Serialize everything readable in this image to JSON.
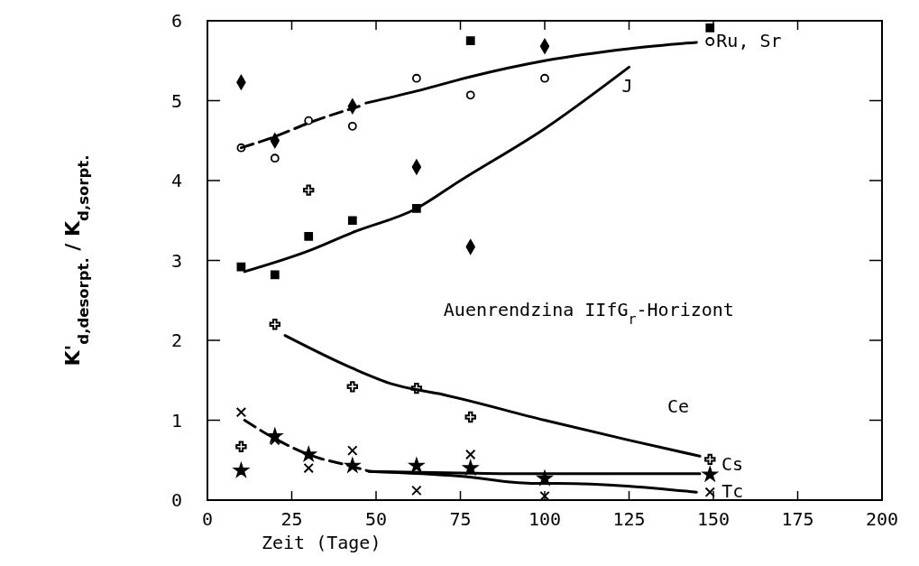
{
  "chart_data": {
    "type": "scatter",
    "xlabel": "Zeit (Tage)",
    "ylabel": "K'$_{d,desorpt.}$ / K$_{d,sorpt.}$",
    "xlim": [
      0,
      200
    ],
    "xticks": [
      0,
      25,
      50,
      75,
      100,
      125,
      150,
      175,
      200
    ],
    "ylim": [
      0,
      6
    ],
    "yticks": [
      0,
      1,
      2,
      3,
      4,
      5,
      6
    ],
    "grid": false,
    "annotations": [
      "Auenrendzina IIfG$_{r}$-Horizont"
    ],
    "series": [
      {
        "type": "scatter",
        "marker": "diamond",
        "color": "#000000",
        "x": [
          10,
          20,
          43,
          62,
          78,
          100
        ],
        "values": [
          5.23,
          4.5,
          4.93,
          4.17,
          3.17,
          5.68
        ]
      },
      {
        "type": "scatter",
        "marker": "circle",
        "color": "#000000",
        "x": [
          10,
          20,
          30,
          43,
          62,
          78,
          100,
          149
        ],
        "values": [
          4.41,
          4.28,
          4.75,
          4.68,
          5.28,
          5.07,
          5.28,
          5.74
        ]
      },
      {
        "type": "scatter",
        "marker": "square",
        "color": "#000000",
        "x": [
          10,
          20,
          30,
          43,
          62,
          78,
          149
        ],
        "values": [
          2.92,
          2.82,
          3.3,
          3.5,
          3.65,
          5.75,
          5.91
        ]
      },
      {
        "type": "scatter",
        "marker": "cross",
        "color": "#000000",
        "x": [
          10,
          20,
          30,
          43,
          62,
          78,
          149
        ],
        "values": [
          0.67,
          2.2,
          3.88,
          1.42,
          1.4,
          1.04,
          0.51
        ]
      },
      {
        "type": "scatter",
        "marker": "star",
        "color": "#000000",
        "x": [
          10,
          20,
          30,
          43,
          62,
          78,
          100,
          149
        ],
        "values": [
          0.37,
          0.8,
          0.57,
          0.43,
          0.43,
          0.4,
          0.27,
          0.32
        ]
      },
      {
        "type": "scatter",
        "marker": "x",
        "color": "#000000",
        "x": [
          10,
          20,
          30,
          43,
          62,
          78,
          100,
          149
        ],
        "values": [
          1.1,
          0.75,
          0.4,
          0.62,
          0.12,
          0.57,
          0.05,
          0.1
        ]
      },
      {
        "type": "line",
        "line_style": "dashed",
        "color": "#000000",
        "x": [
          10,
          20,
          30,
          45
        ],
        "values": [
          4.41,
          4.55,
          4.72,
          4.93
        ]
      },
      {
        "type": "line",
        "line_style": "solid",
        "name": "Ru, Sr",
        "color": "#000000",
        "x": [
          47,
          62,
          78,
          100,
          125,
          145
        ],
        "values": [
          4.97,
          5.12,
          5.3,
          5.5,
          5.65,
          5.73
        ]
      },
      {
        "type": "line",
        "line_style": "solid",
        "name": "J",
        "color": "#000000",
        "x": [
          11,
          30,
          43,
          62,
          75,
          100,
          125
        ],
        "values": [
          2.86,
          3.12,
          3.35,
          3.65,
          4.0,
          4.65,
          5.42
        ]
      },
      {
        "type": "line",
        "line_style": "solid",
        "name": "Ce",
        "color": "#000000",
        "x": [
          23,
          43,
          55,
          70,
          100,
          125,
          146
        ],
        "values": [
          2.06,
          1.65,
          1.45,
          1.32,
          1.0,
          0.75,
          0.55
        ]
      },
      {
        "type": "line",
        "line_style": "dashed",
        "color": "#000000",
        "x": [
          11,
          20,
          30,
          43,
          48
        ],
        "values": [
          1.0,
          0.77,
          0.57,
          0.42,
          0.36
        ]
      },
      {
        "type": "line",
        "line_style": "solid",
        "name": "Cs",
        "color": "#000000",
        "x": [
          48,
          75,
          96,
          104,
          146
        ],
        "values": [
          0.36,
          0.34,
          0.33,
          0.33,
          0.33
        ]
      },
      {
        "type": "line",
        "line_style": "solid",
        "name": "Tc",
        "color": "#000000",
        "x": [
          48,
          75,
          96,
          104,
          145
        ],
        "values": [
          0.36,
          0.3,
          0.21,
          0.21,
          0.1
        ]
      }
    ]
  }
}
